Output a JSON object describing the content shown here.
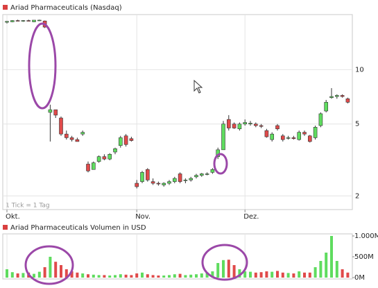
{
  "chart_data": [
    {
      "type": "candlestick",
      "title": "Ariad Pharmaceuticals (Nasdaq)",
      "note": "1 Tick = 1 Tag",
      "open": [
        18.3,
        18.4,
        18.7,
        18.6,
        18.7,
        18.4,
        18.7,
        18.6,
        5.8,
        6.0,
        5.4,
        4.4,
        4.2,
        4.1,
        4.4,
        3.0,
        2.8,
        3.1,
        3.3,
        3.2,
        3.5,
        3.8,
        4.3,
        4.15,
        2.35,
        2.4,
        2.8,
        2.4,
        2.35,
        2.3,
        2.35,
        2.4,
        2.65,
        2.45,
        2.45,
        2.55,
        2.6,
        2.65,
        2.7,
        3.3,
        3.6,
        5.3,
        5.0,
        4.7,
        5.0,
        5.0,
        5.0,
        4.9,
        4.6,
        4.1,
        4.9,
        4.3,
        4.2,
        4.2,
        4.1,
        4.5,
        4.3,
        4.2,
        4.9,
        5.9,
        7.0,
        7.1,
        7.2,
        6.9
      ],
      "high": [
        18.6,
        18.8,
        18.9,
        18.8,
        18.9,
        18.8,
        18.9,
        18.7,
        6.4,
        6.0,
        5.5,
        4.6,
        4.3,
        4.2,
        4.6,
        3.1,
        3.1,
        3.35,
        3.4,
        3.45,
        3.7,
        4.3,
        4.4,
        4.25,
        2.45,
        2.75,
        2.85,
        2.5,
        2.4,
        2.38,
        2.45,
        2.55,
        2.7,
        2.5,
        2.55,
        2.65,
        2.68,
        2.7,
        2.85,
        3.7,
        5.2,
        5.6,
        5.1,
        5.1,
        5.3,
        5.2,
        5.1,
        5.0,
        4.7,
        4.5,
        5.0,
        4.4,
        4.3,
        4.3,
        4.6,
        4.6,
        4.35,
        4.9,
        5.8,
        6.8,
        7.9,
        7.3,
        7.3,
        7.0
      ],
      "low": [
        18.0,
        18.3,
        18.5,
        18.4,
        18.5,
        18.3,
        18.6,
        17.0,
        4.0,
        5.4,
        4.3,
        4.1,
        4.0,
        4.0,
        4.3,
        2.7,
        2.8,
        3.05,
        3.15,
        3.15,
        3.4,
        3.7,
        3.75,
        4.0,
        2.2,
        2.35,
        2.4,
        2.3,
        2.28,
        2.25,
        2.3,
        2.35,
        2.35,
        2.35,
        2.4,
        2.5,
        2.55,
        2.6,
        2.65,
        3.2,
        3.6,
        4.6,
        4.7,
        4.6,
        4.9,
        4.9,
        4.8,
        4.75,
        4.2,
        4.0,
        4.6,
        4.0,
        4.1,
        4.1,
        4.05,
        4.3,
        3.95,
        4.1,
        4.8,
        5.8,
        6.9,
        6.9,
        7.0,
        6.5
      ],
      "close": [
        18.5,
        18.7,
        18.6,
        18.7,
        18.6,
        18.8,
        18.8,
        17.2,
        6.0,
        5.6,
        4.4,
        4.2,
        4.1,
        4.0,
        4.5,
        2.75,
        3.05,
        3.3,
        3.2,
        3.4,
        3.65,
        4.2,
        3.85,
        4.05,
        2.25,
        2.7,
        2.45,
        2.35,
        2.33,
        2.35,
        2.4,
        2.5,
        2.4,
        2.45,
        2.5,
        2.6,
        2.65,
        2.65,
        2.8,
        3.6,
        5.0,
        4.75,
        4.75,
        5.0,
        5.1,
        5.05,
        4.9,
        4.85,
        4.25,
        4.4,
        4.7,
        4.1,
        4.2,
        4.15,
        4.5,
        4.4,
        4.0,
        4.8,
        5.7,
        6.6,
        7.1,
        7.2,
        7.1,
        6.6
      ],
      "up_color": "#5fdc5f",
      "down_color": "#e04a4a",
      "ylim": [
        1.68,
        20
      ],
      "yticks": [
        2,
        5,
        10
      ],
      "log_scale": true,
      "grid": true,
      "xticks": [
        {
          "value": 0,
          "label": "Okt."
        },
        {
          "value": 24,
          "label": "Nov."
        },
        {
          "value": 44,
          "label": "Dez."
        }
      ]
    },
    {
      "type": "bar",
      "title": "Ariad Pharmaceuticals Volumen in USD",
      "values": [
        200,
        130,
        100,
        110,
        120,
        90,
        140,
        250,
        500,
        380,
        300,
        200,
        150,
        120,
        100,
        80,
        70,
        60,
        60,
        50,
        60,
        80,
        70,
        60,
        100,
        120,
        80,
        60,
        50,
        50,
        60,
        80,
        90,
        60,
        70,
        80,
        100,
        120,
        150,
        350,
        420,
        430,
        300,
        200,
        150,
        140,
        120,
        130,
        150,
        140,
        160,
        120,
        110,
        100,
        150,
        120,
        120,
        250,
        400,
        600,
        1000,
        400,
        200,
        120
      ],
      "ylim": [
        0,
        1000
      ],
      "yticks": [
        {
          "value": 0,
          "label": "0M"
        },
        {
          "value": 500,
          "label": "500M"
        },
        {
          "value": 1000,
          "label": "1.000M"
        }
      ]
    }
  ]
}
